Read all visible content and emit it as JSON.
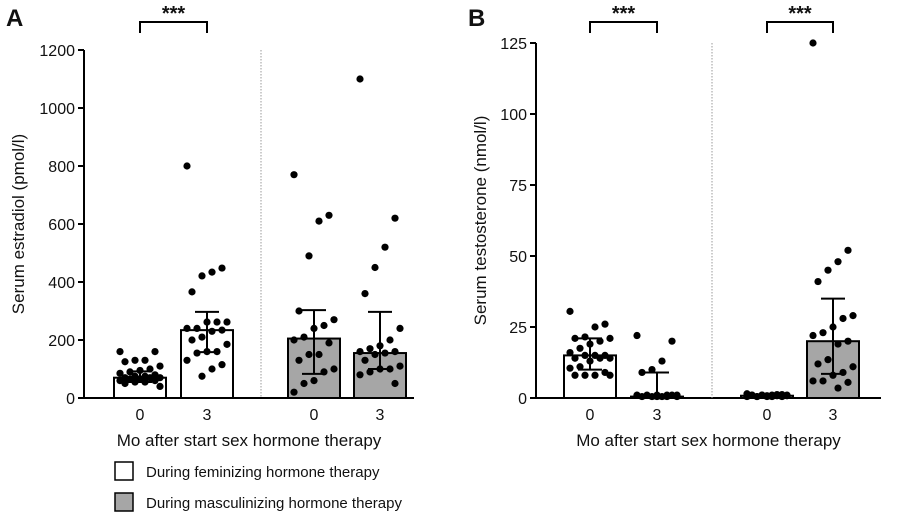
{
  "colors": {
    "feminizing": "#ffffff",
    "masculinizing": "#a6a6a6",
    "stroke": "#000000"
  },
  "legend": {
    "placement": "bottom-left",
    "items": [
      {
        "label": "During feminizing hormone therapy",
        "color": "#ffffff"
      },
      {
        "label": "During masculinizing hormone therapy",
        "color": "#a6a6a6"
      }
    ]
  },
  "chart_data": [
    {
      "panel": "A",
      "type": "bar",
      "xlabel": "Mo after start sex hormone therapy",
      "ylabel": "Serum estradiol (pmol/l)",
      "ylim": [
        0,
        1200
      ],
      "yticks": [
        "0",
        "200",
        "400",
        "600",
        "800",
        "1000",
        "1200"
      ],
      "categories": [
        "0",
        "3",
        "0",
        "3"
      ],
      "significance": [
        {
          "between": [
            0,
            1
          ],
          "label": "***"
        }
      ],
      "groups": [
        {
          "category": "0",
          "fill": "feminizing",
          "value": 70,
          "err_low": 55,
          "err_high": 92,
          "points": [
            160,
            160,
            130,
            130,
            125,
            110,
            100,
            95,
            90,
            85,
            80,
            75,
            75,
            70,
            70,
            70,
            65,
            65,
            60,
            60,
            55,
            55,
            50,
            40
          ]
        },
        {
          "category": "3",
          "fill": "feminizing",
          "value": 234,
          "err_low": 158,
          "err_high": 297,
          "points": [
            800,
            448,
            434,
            421,
            366,
            262,
            262,
            262,
            240,
            240,
            234,
            230,
            210,
            200,
            185,
            160,
            160,
            155,
            130,
            115,
            100,
            75
          ]
        },
        {
          "category": "0",
          "fill": "masculinizing",
          "value": 205,
          "err_low": 83,
          "err_high": 303,
          "points": [
            770,
            630,
            610,
            490,
            300,
            270,
            250,
            240,
            210,
            200,
            190,
            150,
            150,
            130,
            100,
            90,
            60,
            50,
            20
          ]
        },
        {
          "category": "3",
          "fill": "masculinizing",
          "value": 155,
          "err_low": 100,
          "err_high": 297,
          "points": [
            1100,
            620,
            520,
            450,
            360,
            240,
            200,
            180,
            170,
            160,
            160,
            155,
            150,
            130,
            110,
            100,
            100,
            90,
            80,
            50
          ]
        }
      ]
    },
    {
      "panel": "B",
      "type": "bar",
      "xlabel": "Mo after start sex hormone therapy",
      "ylabel": "Serum testosterone (nmol/l)",
      "ylim": [
        0,
        125
      ],
      "yticks": [
        "0",
        "25",
        "50",
        "75",
        "100",
        "125"
      ],
      "categories": [
        "0",
        "3",
        "0",
        "3"
      ],
      "significance": [
        {
          "between": [
            0,
            1
          ],
          "label": "***"
        },
        {
          "between": [
            2,
            3
          ],
          "label": "***"
        }
      ],
      "groups": [
        {
          "category": "0",
          "fill": "feminizing",
          "value": 15,
          "err_low": 10,
          "err_high": 21,
          "points": [
            30.5,
            26,
            25,
            21.5,
            21,
            21,
            20,
            19,
            17.5,
            16,
            15,
            15,
            15,
            14,
            14,
            14,
            13,
            11,
            10.5,
            9,
            8,
            8,
            8,
            8
          ]
        },
        {
          "category": "3",
          "fill": "feminizing",
          "value": 0.5,
          "err_low": 0,
          "err_high": 9,
          "points": [
            22,
            20,
            13,
            10,
            9,
            1,
            1,
            1,
            1,
            1,
            1,
            0.5,
            0.5,
            0.5,
            0.5,
            0.5,
            0.5
          ]
        },
        {
          "category": "0",
          "fill": "masculinizing",
          "value": 0.8,
          "err_low": 0.5,
          "err_high": 1,
          "points": [
            1.5,
            1.2,
            1,
            1,
            1,
            0.8,
            0.8,
            0.5,
            0.5,
            0.5,
            0.5,
            0.5,
            1,
            1,
            1,
            1.2,
            0.8,
            0.5
          ]
        },
        {
          "category": "3",
          "fill": "masculinizing",
          "value": 20,
          "err_low": 8.5,
          "err_high": 35,
          "points": [
            125,
            52,
            48,
            45,
            41,
            29,
            28,
            25,
            23,
            22,
            20,
            19,
            13.5,
            12,
            11,
            9,
            8,
            6,
            6,
            5.5,
            3.5
          ]
        }
      ]
    }
  ]
}
